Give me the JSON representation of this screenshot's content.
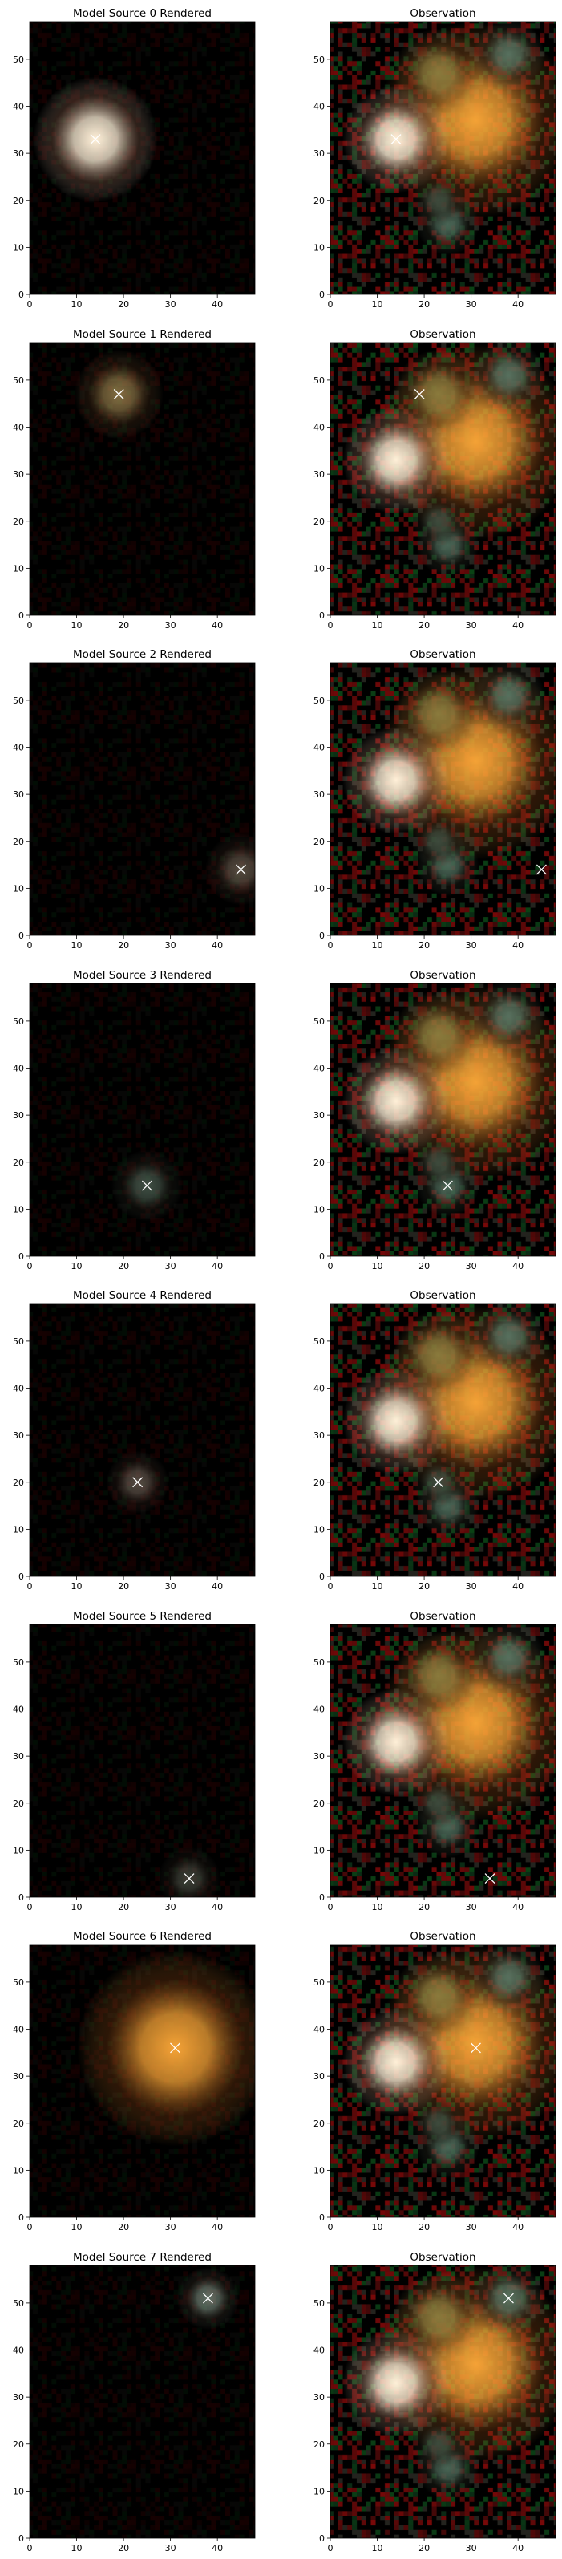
{
  "chart_data": {
    "type": "image-grid",
    "rows": 8,
    "cols": 2,
    "image_extent": {
      "x": [
        0,
        48
      ],
      "y": [
        0,
        58
      ]
    },
    "x_ticks": [
      0,
      10,
      20,
      30,
      40
    ],
    "y_ticks": [
      0,
      10,
      20,
      30,
      40,
      50
    ],
    "marker": "x",
    "observation_title": "Observation",
    "sources": [
      {
        "title": "Model Source 0 Rendered",
        "x": 14,
        "y": 33
      },
      {
        "title": "Model Source 1 Rendered",
        "x": 19,
        "y": 47
      },
      {
        "title": "Model Source 2 Rendered",
        "x": 45,
        "y": 14
      },
      {
        "title": "Model Source 3 Rendered",
        "x": 25,
        "y": 15
      },
      {
        "title": "Model Source 4 Rendered",
        "x": 23,
        "y": 20
      },
      {
        "title": "Model Source 5 Rendered",
        "x": 34,
        "y": 4
      },
      {
        "title": "Model Source 6 Rendered",
        "x": 31,
        "y": 36
      },
      {
        "title": "Model Source 7 Rendered",
        "x": 38,
        "y": 51
      }
    ],
    "observation_blobs": [
      {
        "x": 31,
        "y": 37,
        "color": "#f4a236"
      },
      {
        "x": 14,
        "y": 33,
        "color": "#fff0d8"
      },
      {
        "x": 23,
        "y": 47,
        "color": "#8a7a3c"
      },
      {
        "x": 25,
        "y": 15,
        "color": "#4a6656"
      },
      {
        "x": 23,
        "y": 20,
        "color": "#3d4a3c"
      },
      {
        "x": 38,
        "y": 51,
        "color": "#56705e"
      }
    ]
  }
}
